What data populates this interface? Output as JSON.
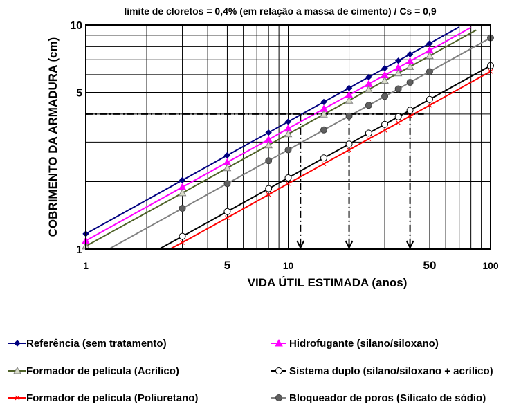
{
  "chart_data": {
    "type": "line",
    "title": "limite de cloretos  = 0,4% (em relação a massa de cimento) / Cs = 0,9",
    "xlabel": "VIDA ÚTIL ESTIMADA (anos)",
    "ylabel": "COBRIMENTO DA ARMADURA (cm)",
    "x_scale": "log",
    "y_scale": "log",
    "xlim": [
      1,
      100
    ],
    "ylim": [
      1,
      10
    ],
    "x_ticks": [
      {
        "value": 1,
        "label": "1"
      },
      {
        "value": 5,
        "label": "5"
      },
      {
        "value": 10,
        "label": "10"
      },
      {
        "value": 50,
        "label": "50"
      },
      {
        "value": 100,
        "label": "100"
      }
    ],
    "y_ticks": [
      {
        "value": 1,
        "label": "1"
      },
      {
        "value": 5,
        "label": "5"
      },
      {
        "value": 10,
        "label": "10"
      }
    ],
    "grid": true,
    "legend_position": "bottom",
    "series": [
      {
        "name": "Referência (sem tratamento)",
        "color": "#000080",
        "marker": "diamond",
        "x": [
          1,
          3,
          5,
          8,
          10,
          15,
          20,
          25,
          30,
          35,
          40,
          50,
          70
        ],
        "y": [
          1.17,
          2.03,
          2.62,
          3.31,
          3.7,
          4.53,
          5.23,
          5.85,
          6.41,
          6.92,
          7.4,
          8.27,
          9.79
        ]
      },
      {
        "name": "Hidrofugante (silano/siloxano)",
        "color": "#ff00ff",
        "marker": "triangle",
        "x": [
          1,
          3,
          5,
          8,
          10,
          15,
          20,
          25,
          30,
          35,
          40,
          50,
          80
        ],
        "y": [
          1.09,
          1.89,
          2.44,
          3.08,
          3.45,
          4.22,
          4.87,
          5.45,
          5.97,
          6.45,
          6.89,
          7.7,
          9.75
        ]
      },
      {
        "name": "Formador de película (Acrílico)",
        "color": "#4f6228",
        "marker": "triangle-open",
        "x": [
          1,
          3,
          5,
          8,
          10,
          15,
          20,
          25,
          30,
          35,
          40,
          50,
          85
        ],
        "y": [
          1.03,
          1.78,
          2.3,
          2.91,
          3.26,
          3.99,
          4.6,
          5.15,
          5.64,
          6.09,
          6.51,
          7.28,
          9.49
        ]
      },
      {
        "name": "Sistema duplo (silano/siloxano + acrílico)",
        "color": "#000000",
        "marker": "circle-open",
        "x": [
          2.3,
          3,
          5,
          8,
          10,
          15,
          20,
          25,
          30,
          35,
          40,
          50,
          100
        ],
        "y": [
          1.0,
          1.14,
          1.47,
          1.86,
          2.08,
          2.55,
          2.94,
          3.29,
          3.6,
          3.89,
          4.16,
          4.65,
          6.58
        ]
      },
      {
        "name": "Formador de película (Poliuretano)",
        "color": "#ff0000",
        "marker": "x",
        "x": [
          2.6,
          3,
          5,
          8,
          10,
          15,
          20,
          25,
          30,
          35,
          40,
          50,
          100
        ],
        "y": [
          1.0,
          1.07,
          1.38,
          1.75,
          1.96,
          2.4,
          2.77,
          3.1,
          3.39,
          3.66,
          3.92,
          4.38,
          6.2
        ]
      },
      {
        "name": "Bloqueador de poros (Silicato de sódio)",
        "color": "#808080",
        "marker": "circle",
        "x": [
          1.3,
          3,
          5,
          8,
          10,
          15,
          20,
          25,
          30,
          35,
          40,
          50,
          100
        ],
        "y": [
          1.0,
          1.52,
          1.96,
          2.48,
          2.77,
          3.4,
          3.92,
          4.38,
          4.8,
          5.18,
          5.54,
          6.19,
          8.76
        ]
      }
    ],
    "annotations": {
      "cover_value": 4.0,
      "target_lives": [
        11.5,
        20,
        40
      ]
    }
  }
}
